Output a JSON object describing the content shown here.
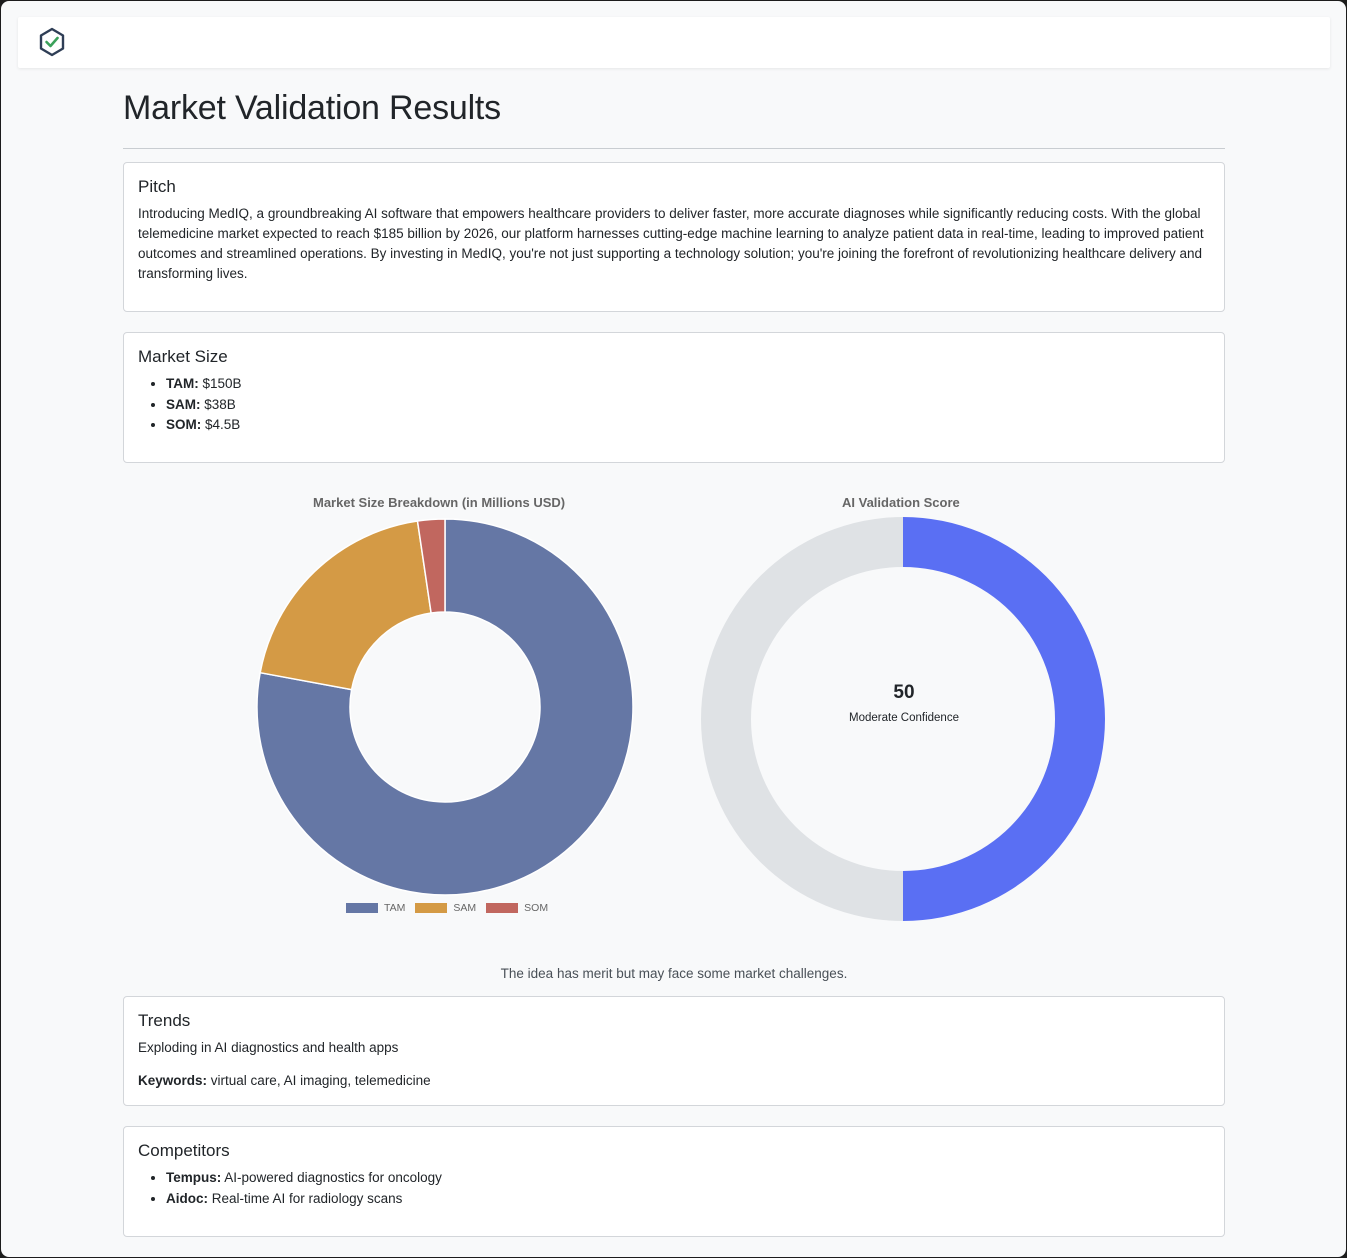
{
  "page": {
    "title": "Market Validation Results",
    "summary": "The idea has merit but may face some market challenges."
  },
  "pitch": {
    "heading": "Pitch",
    "text": "Introducing MedIQ, a groundbreaking AI software that empowers healthcare providers to deliver faster, more accurate diagnoses while significantly reducing costs. With the global telemedicine market expected to reach $185 billion by 2026, our platform harnesses cutting-edge machine learning to analyze patient data in real-time, leading to improved patient outcomes and streamlined operations. By investing in MedIQ, you're not just supporting a technology solution; you're joining the forefront of revolutionizing healthcare delivery and transforming lives."
  },
  "market_size": {
    "heading": "Market Size",
    "items": [
      {
        "label": "TAM:",
        "value": "$150B"
      },
      {
        "label": "SAM:",
        "value": "$38B"
      },
      {
        "label": "SOM:",
        "value": "$4.5B"
      }
    ]
  },
  "trends": {
    "heading": "Trends",
    "text": "Exploding in AI diagnostics and health apps",
    "keywords_label": "Keywords:",
    "keywords": "virtual care, AI imaging, telemedicine"
  },
  "competitors": {
    "heading": "Competitors",
    "items": [
      {
        "name": "Tempus:",
        "desc": "AI-powered diagnostics for oncology"
      },
      {
        "name": "Aidoc:",
        "desc": "Real-time AI for radiology scans"
      }
    ]
  },
  "colors": {
    "tam": "#6577a5",
    "sam": "#d49a45",
    "som": "#c1675f",
    "score": "#5a6ff3",
    "score_track": "#dfe2e5",
    "logo": "#2f3e56",
    "logo_check": "#3ba15a"
  },
  "icons": {
    "logo": "hexagon-check-icon"
  },
  "chart_data": [
    {
      "type": "pie",
      "title": "Market Size Breakdown (in Millions USD)",
      "categories": [
        "TAM",
        "SAM",
        "SOM"
      ],
      "values": [
        150000,
        38000,
        4500
      ],
      "legend": "bottom",
      "donut": true
    },
    {
      "type": "pie",
      "title": "AI Validation Score",
      "value": 50,
      "max": 100,
      "center_value": "50",
      "center_label": "Moderate Confidence",
      "donut": true
    }
  ]
}
